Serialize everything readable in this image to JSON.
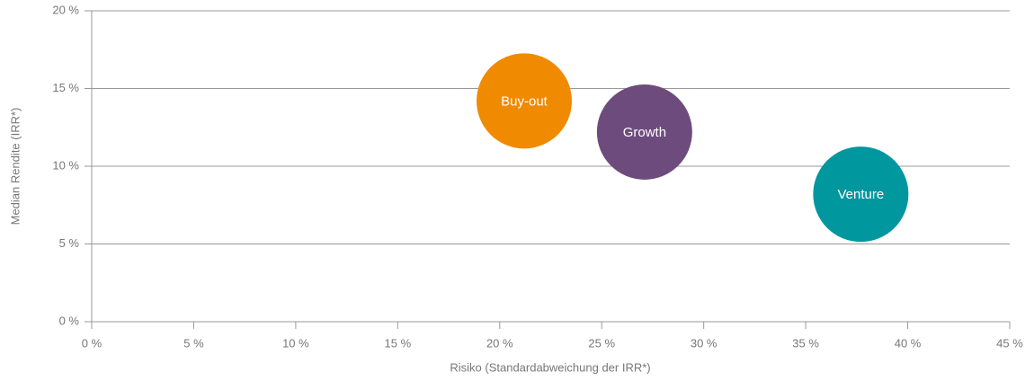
{
  "chart_data": {
    "type": "scatter",
    "xlabel": "Risiko (Standardabweichung der IRR*)",
    "ylabel": "Median Rendite (IRR*)",
    "series": [
      {
        "name": "Buy-out",
        "color": "#f08a00",
        "x": [
          21.2
        ],
        "values": [
          14.2
        ]
      },
      {
        "name": "Growth",
        "color": "#6d4c7d",
        "x": [
          27.1
        ],
        "values": [
          12.2
        ]
      },
      {
        "name": "Venture",
        "color": "#00979f",
        "x": [
          37.7
        ],
        "values": [
          8.2
        ]
      }
    ],
    "xlim": [
      0,
      45
    ],
    "xticks": [
      {
        "value": 0,
        "label": "0 %"
      },
      {
        "value": 5,
        "label": "5 %"
      },
      {
        "value": 10,
        "label": "10 %"
      },
      {
        "value": 15,
        "label": "15 %"
      },
      {
        "value": 20,
        "label": "20 %"
      },
      {
        "value": 25,
        "label": "25 %"
      },
      {
        "value": 30,
        "label": "30 %"
      },
      {
        "value": 35,
        "label": "35 %"
      },
      {
        "value": 40,
        "label": "40 %"
      },
      {
        "value": 45,
        "label": "45 %"
      }
    ],
    "ylim": [
      0,
      20
    ],
    "yticks": [
      {
        "value": 0,
        "label": "0 %"
      },
      {
        "value": 5,
        "label": "5 %"
      },
      {
        "value": 10,
        "label": "10 %"
      },
      {
        "value": 15,
        "label": "15 %"
      },
      {
        "value": 20,
        "label": "20 %"
      }
    ],
    "grid": true
  }
}
